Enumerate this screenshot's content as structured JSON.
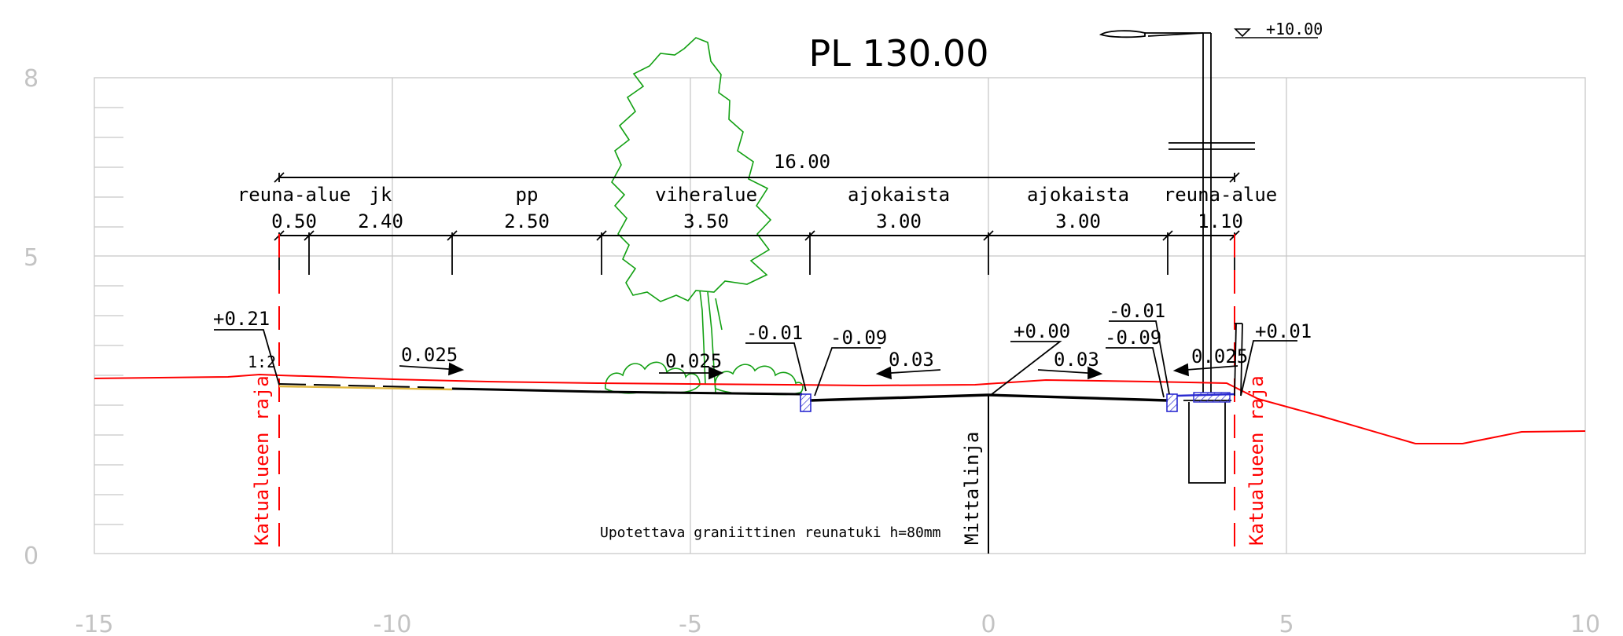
{
  "title": "PL 130.00",
  "elevation_marker": "+10.00",
  "axes": {
    "x_ticks": [
      "-15",
      "-10",
      "-5",
      "0",
      "5",
      "10"
    ],
    "y_ticks": [
      "0",
      "5",
      "8"
    ]
  },
  "total_width": "16.00",
  "zones": [
    {
      "name": "reuna-alue",
      "width": "0.50"
    },
    {
      "name": "jk",
      "width": "2.40"
    },
    {
      "name": "pp",
      "width": "2.50"
    },
    {
      "name": "viheralue",
      "width": "3.50"
    },
    {
      "name": "ajokaista",
      "width": "3.00"
    },
    {
      "name": "ajokaista",
      "width": "3.00"
    },
    {
      "name": "reuna-alue",
      "width": "1.10"
    }
  ],
  "elevations": {
    "left_edge": "+0.21",
    "slope_ratio": "1:2",
    "curb_top_left": "-0.01",
    "curb_bottom_left": "-0.09",
    "centerline": "+0.00",
    "curb_top_right": "-0.01",
    "curb_bottom_right": "-0.09",
    "right_edge": "+0.01"
  },
  "slopes": {
    "walkway": "0.025",
    "green": "0.025",
    "lane_left": "0.03",
    "lane_right": "0.03",
    "edge_right": "0.025"
  },
  "labels": {
    "boundary_left": "Katualueen raja",
    "boundary_right": "Katualueen raja",
    "measurement_line": "Mittalinja",
    "curb_note": "Upotettava graniittinen reunatuki h=80mm"
  },
  "colors": {
    "boundary": "#ff0000",
    "vegetation": "#12a012",
    "curb_hatch": "#2a2ad0",
    "grid": "#c8c8c8"
  }
}
